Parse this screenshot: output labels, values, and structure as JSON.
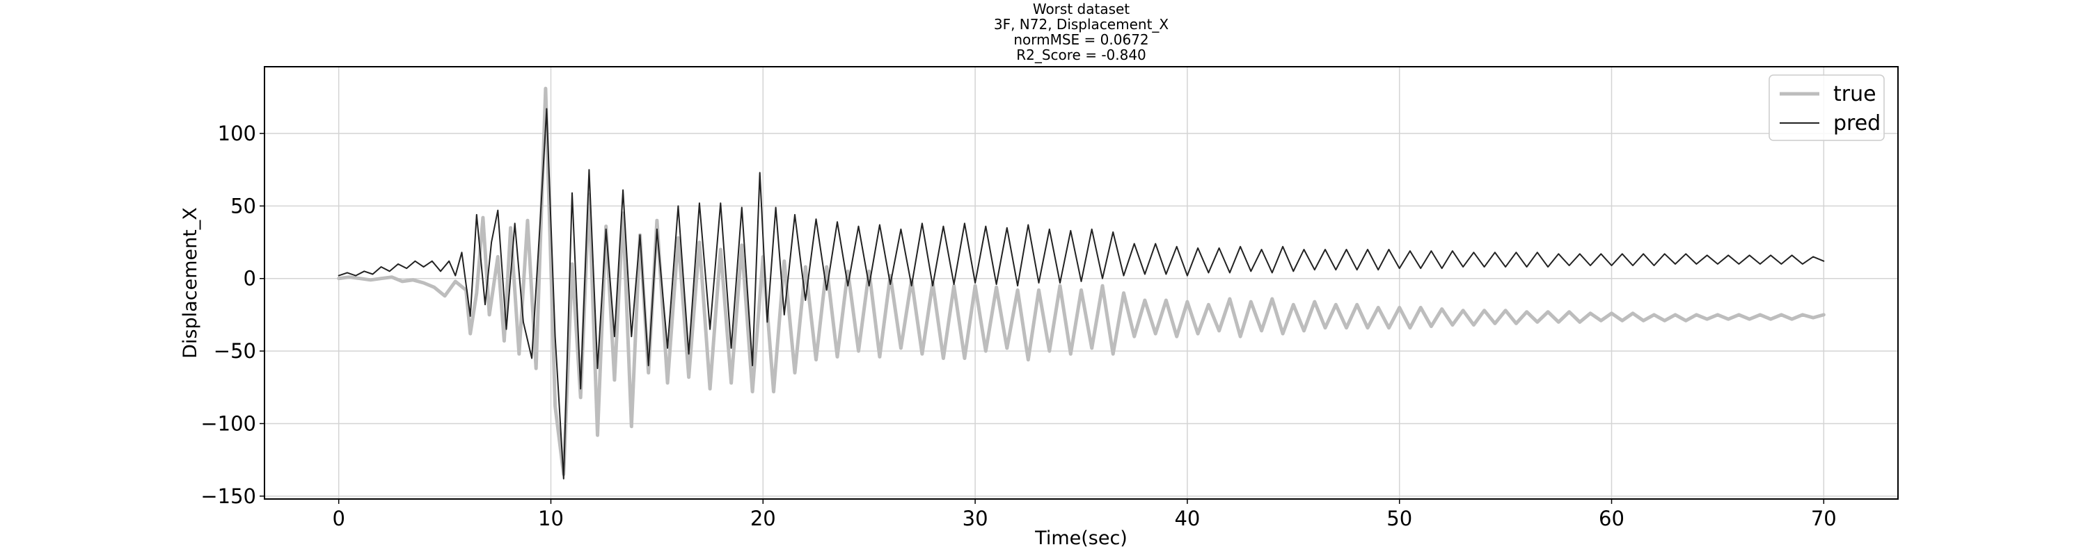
{
  "chart_data": {
    "type": "line",
    "title_lines": [
      "Worst dataset",
      "3F, N72, Displacement_X",
      "normMSE = 0.0672",
      "R2_Score = -0.840"
    ],
    "xlabel": "Time(sec)",
    "ylabel": "Displacement_X",
    "xlim": [
      -3.5,
      73.5
    ],
    "ylim": [
      -152,
      146
    ],
    "xticks": [
      0,
      10,
      20,
      30,
      40,
      50,
      60,
      70
    ],
    "yticks": [
      -150,
      -100,
      -50,
      0,
      50,
      100
    ],
    "tick_labels": {
      "x": [
        "0",
        "10",
        "20",
        "30",
        "40",
        "50",
        "60",
        "70"
      ],
      "y": [
        "−150",
        "−100",
        "−50",
        "0",
        "50",
        "100"
      ]
    },
    "grid": true,
    "legend": {
      "placement": "top-right",
      "entries": [
        {
          "label": "true",
          "series": "true"
        },
        {
          "label": "pred",
          "series": "pred"
        }
      ]
    },
    "series": [
      {
        "name": "true",
        "color": "#bdbdbd",
        "style": "thick",
        "points": [
          [
            0,
            0
          ],
          [
            0.5,
            1
          ],
          [
            1,
            0
          ],
          [
            1.5,
            -1
          ],
          [
            2,
            0
          ],
          [
            2.5,
            1
          ],
          [
            3,
            -2
          ],
          [
            3.5,
            -1
          ],
          [
            4,
            -3
          ],
          [
            4.5,
            -6
          ],
          [
            5,
            -12
          ],
          [
            5.5,
            -2
          ],
          [
            6,
            -8
          ],
          [
            6.2,
            -38
          ],
          [
            6.5,
            -10
          ],
          [
            6.8,
            42
          ],
          [
            7.1,
            -25
          ],
          [
            7.5,
            15
          ],
          [
            7.8,
            -43
          ],
          [
            8.1,
            35
          ],
          [
            8.5,
            -52
          ],
          [
            8.9,
            40
          ],
          [
            9.3,
            -62
          ],
          [
            9.75,
            131
          ],
          [
            10.2,
            -88
          ],
          [
            10.6,
            -135
          ],
          [
            11.0,
            10
          ],
          [
            11.4,
            -82
          ],
          [
            11.8,
            58
          ],
          [
            12.2,
            -108
          ],
          [
            12.6,
            36
          ],
          [
            13.0,
            -70
          ],
          [
            13.4,
            45
          ],
          [
            13.8,
            -102
          ],
          [
            14.2,
            30
          ],
          [
            14.6,
            -65
          ],
          [
            15.0,
            40
          ],
          [
            15.5,
            -72
          ],
          [
            16.0,
            28
          ],
          [
            16.5,
            -68
          ],
          [
            17.0,
            25
          ],
          [
            17.5,
            -76
          ],
          [
            18.0,
            20
          ],
          [
            18.5,
            -72
          ],
          [
            19.0,
            23
          ],
          [
            19.5,
            -78
          ],
          [
            20.0,
            15
          ],
          [
            20.5,
            -78
          ],
          [
            21.0,
            12
          ],
          [
            21.5,
            -65
          ],
          [
            22.0,
            8
          ],
          [
            22.5,
            -56
          ],
          [
            23.0,
            8
          ],
          [
            23.5,
            -54
          ],
          [
            24.0,
            5
          ],
          [
            24.5,
            -50
          ],
          [
            25.0,
            5
          ],
          [
            25.5,
            -54
          ],
          [
            26.0,
            2
          ],
          [
            26.5,
            -48
          ],
          [
            27.0,
            -1
          ],
          [
            27.5,
            -52
          ],
          [
            28.0,
            -3
          ],
          [
            28.5,
            -55
          ],
          [
            29.0,
            -5
          ],
          [
            29.5,
            -55
          ],
          [
            30.0,
            -5
          ],
          [
            30.5,
            -50
          ],
          [
            31.0,
            -6
          ],
          [
            31.5,
            -48
          ],
          [
            32.0,
            -8
          ],
          [
            32.5,
            -56
          ],
          [
            33.0,
            -8
          ],
          [
            33.5,
            -50
          ],
          [
            34.0,
            -5
          ],
          [
            34.5,
            -52
          ],
          [
            35.0,
            -8
          ],
          [
            35.5,
            -48
          ],
          [
            36.0,
            -5
          ],
          [
            36.5,
            -52
          ],
          [
            37.0,
            -10
          ],
          [
            37.5,
            -40
          ],
          [
            38.0,
            -15
          ],
          [
            38.5,
            -38
          ],
          [
            39.0,
            -15
          ],
          [
            39.5,
            -40
          ],
          [
            40.0,
            -16
          ],
          [
            40.5,
            -38
          ],
          [
            41.0,
            -18
          ],
          [
            41.5,
            -36
          ],
          [
            42.0,
            -14
          ],
          [
            42.5,
            -40
          ],
          [
            43.0,
            -16
          ],
          [
            43.5,
            -36
          ],
          [
            44.0,
            -14
          ],
          [
            44.5,
            -38
          ],
          [
            45.0,
            -18
          ],
          [
            45.5,
            -36
          ],
          [
            46.0,
            -16
          ],
          [
            46.5,
            -34
          ],
          [
            47.0,
            -18
          ],
          [
            47.5,
            -34
          ],
          [
            48.0,
            -18
          ],
          [
            48.5,
            -34
          ],
          [
            49.0,
            -20
          ],
          [
            49.5,
            -34
          ],
          [
            50.0,
            -20
          ],
          [
            50.5,
            -34
          ],
          [
            51.0,
            -20
          ],
          [
            51.5,
            -33
          ],
          [
            52.0,
            -21
          ],
          [
            52.5,
            -32
          ],
          [
            53.0,
            -22
          ],
          [
            53.5,
            -32
          ],
          [
            54.0,
            -22
          ],
          [
            54.5,
            -31
          ],
          [
            55.0,
            -22
          ],
          [
            55.5,
            -31
          ],
          [
            56.0,
            -23
          ],
          [
            56.5,
            -30
          ],
          [
            57.0,
            -23
          ],
          [
            57.5,
            -30
          ],
          [
            58.0,
            -23
          ],
          [
            58.5,
            -30
          ],
          [
            59.0,
            -24
          ],
          [
            59.5,
            -29
          ],
          [
            60.0,
            -24
          ],
          [
            60.5,
            -29
          ],
          [
            61.0,
            -24
          ],
          [
            61.5,
            -29
          ],
          [
            62.0,
            -25
          ],
          [
            62.5,
            -29
          ],
          [
            63.0,
            -25
          ],
          [
            63.5,
            -29
          ],
          [
            64.0,
            -25
          ],
          [
            64.5,
            -28
          ],
          [
            65.0,
            -25
          ],
          [
            65.5,
            -28
          ],
          [
            66.0,
            -25
          ],
          [
            66.5,
            -28
          ],
          [
            67.0,
            -25
          ],
          [
            67.5,
            -28
          ],
          [
            68.0,
            -25
          ],
          [
            68.5,
            -28
          ],
          [
            69.0,
            -25
          ],
          [
            69.5,
            -27
          ],
          [
            70.0,
            -25
          ]
        ]
      },
      {
        "name": "pred",
        "color": "#222222",
        "style": "thin",
        "points": [
          [
            0,
            2
          ],
          [
            0.4,
            4
          ],
          [
            0.8,
            2
          ],
          [
            1.2,
            5
          ],
          [
            1.6,
            3
          ],
          [
            2.0,
            8
          ],
          [
            2.4,
            5
          ],
          [
            2.8,
            10
          ],
          [
            3.2,
            7
          ],
          [
            3.6,
            12
          ],
          [
            4.0,
            8
          ],
          [
            4.4,
            12
          ],
          [
            4.8,
            5
          ],
          [
            5.2,
            12
          ],
          [
            5.5,
            2
          ],
          [
            5.8,
            18
          ],
          [
            6.2,
            -26
          ],
          [
            6.5,
            44
          ],
          [
            6.9,
            -18
          ],
          [
            7.2,
            25
          ],
          [
            7.5,
            47
          ],
          [
            7.9,
            -35
          ],
          [
            8.3,
            38
          ],
          [
            8.7,
            -30
          ],
          [
            9.1,
            -55
          ],
          [
            9.5,
            40
          ],
          [
            9.8,
            117
          ],
          [
            10.2,
            -40
          ],
          [
            10.6,
            -138
          ],
          [
            11.0,
            59
          ],
          [
            11.4,
            -76
          ],
          [
            11.8,
            75
          ],
          [
            12.2,
            -62
          ],
          [
            12.6,
            34
          ],
          [
            13.0,
            -40
          ],
          [
            13.4,
            61
          ],
          [
            13.8,
            -40
          ],
          [
            14.2,
            30
          ],
          [
            14.6,
            -60
          ],
          [
            15.0,
            34
          ],
          [
            15.5,
            -48
          ],
          [
            16.0,
            50
          ],
          [
            16.5,
            -52
          ],
          [
            17.0,
            52
          ],
          [
            17.5,
            -35
          ],
          [
            18.0,
            52
          ],
          [
            18.5,
            -48
          ],
          [
            19.0,
            49
          ],
          [
            19.5,
            -60
          ],
          [
            19.85,
            73
          ],
          [
            20.2,
            -30
          ],
          [
            20.6,
            49
          ],
          [
            21.0,
            -25
          ],
          [
            21.5,
            44
          ],
          [
            22.0,
            -15
          ],
          [
            22.5,
            41
          ],
          [
            23.0,
            -8
          ],
          [
            23.5,
            39
          ],
          [
            24.0,
            -5
          ],
          [
            24.5,
            36
          ],
          [
            25.0,
            -5
          ],
          [
            25.5,
            37
          ],
          [
            26.0,
            -4
          ],
          [
            26.5,
            34
          ],
          [
            27.0,
            -5
          ],
          [
            27.5,
            38
          ],
          [
            28.0,
            -5
          ],
          [
            28.5,
            36
          ],
          [
            29.0,
            -4
          ],
          [
            29.5,
            38
          ],
          [
            30.0,
            -3
          ],
          [
            30.5,
            36
          ],
          [
            31.0,
            -4
          ],
          [
            31.5,
            35
          ],
          [
            32.0,
            -5
          ],
          [
            32.5,
            37
          ],
          [
            33.0,
            -3
          ],
          [
            33.5,
            34
          ],
          [
            34.0,
            -3
          ],
          [
            34.5,
            33
          ],
          [
            35.0,
            -2
          ],
          [
            35.5,
            34
          ],
          [
            36.0,
            0
          ],
          [
            36.5,
            32
          ],
          [
            37.0,
            2
          ],
          [
            37.5,
            24
          ],
          [
            38.0,
            3
          ],
          [
            38.5,
            24
          ],
          [
            39.0,
            3
          ],
          [
            39.5,
            22
          ],
          [
            40.0,
            2
          ],
          [
            40.5,
            21
          ],
          [
            41.0,
            4
          ],
          [
            41.5,
            21
          ],
          [
            42.0,
            4
          ],
          [
            42.5,
            22
          ],
          [
            43.0,
            5
          ],
          [
            43.5,
            20
          ],
          [
            44.0,
            4
          ],
          [
            44.5,
            22
          ],
          [
            45.0,
            5
          ],
          [
            45.5,
            20
          ],
          [
            46.0,
            6
          ],
          [
            46.5,
            20
          ],
          [
            47.0,
            6
          ],
          [
            47.5,
            20
          ],
          [
            48.0,
            6
          ],
          [
            48.5,
            20
          ],
          [
            49.0,
            6
          ],
          [
            49.5,
            20
          ],
          [
            50.0,
            7
          ],
          [
            50.5,
            19
          ],
          [
            51.0,
            7
          ],
          [
            51.5,
            19
          ],
          [
            52.0,
            7
          ],
          [
            52.5,
            19
          ],
          [
            53.0,
            8
          ],
          [
            53.5,
            18
          ],
          [
            54.0,
            8
          ],
          [
            54.5,
            18
          ],
          [
            55.0,
            8
          ],
          [
            55.5,
            18
          ],
          [
            56.0,
            8
          ],
          [
            56.5,
            18
          ],
          [
            57.0,
            8
          ],
          [
            57.5,
            17
          ],
          [
            58.0,
            9
          ],
          [
            58.5,
            17
          ],
          [
            59.0,
            9
          ],
          [
            59.5,
            17
          ],
          [
            60.0,
            9
          ],
          [
            60.5,
            17
          ],
          [
            61.0,
            9
          ],
          [
            61.5,
            17
          ],
          [
            62.0,
            9
          ],
          [
            62.5,
            17
          ],
          [
            63.0,
            10
          ],
          [
            63.5,
            17
          ],
          [
            64.0,
            10
          ],
          [
            64.5,
            16
          ],
          [
            65.0,
            10
          ],
          [
            65.5,
            16
          ],
          [
            66.0,
            10
          ],
          [
            66.5,
            16
          ],
          [
            67.0,
            10
          ],
          [
            67.5,
            16
          ],
          [
            68.0,
            10
          ],
          [
            68.5,
            16
          ],
          [
            69.0,
            10
          ],
          [
            69.5,
            15
          ],
          [
            70.0,
            12
          ]
        ]
      }
    ]
  }
}
